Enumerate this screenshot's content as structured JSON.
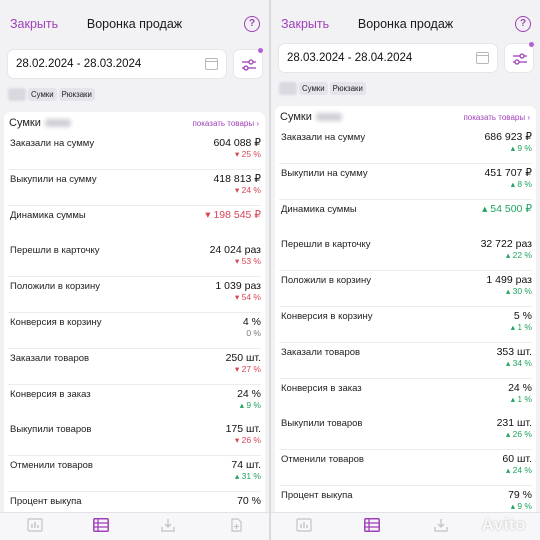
{
  "colors": {
    "accent": "#a040b8",
    "negative": "#d84555",
    "positive": "#21a35f"
  },
  "panels": [
    {
      "close_label": "Закрыть",
      "title": "Воронка продаж",
      "help_icon": "?",
      "date_range": "28.02.2024 - 28.03.2024",
      "chips": [
        "Сумки",
        "Рюкзаки"
      ],
      "card_title": "Сумки",
      "show_goods": "показать товары",
      "metrics": [
        {
          "label": "Заказали на сумму",
          "value": "604 088 ₽",
          "delta": "▾ 25 %",
          "trend": "neg"
        },
        {
          "label": "Выкупили на сумму",
          "value": "418 813 ₽",
          "delta": "▾ 24 %",
          "trend": "neg"
        },
        {
          "label": "Динамика суммы",
          "value": "▾ 198 545 ₽",
          "delta": "",
          "trend": "neg",
          "value_colored": true
        },
        {
          "label": "Перешли в карточку",
          "value": "24 024 раз",
          "delta": "▾ 53 %",
          "trend": "neg"
        },
        {
          "label": "Положили в корзину",
          "value": "1 039 раз",
          "delta": "▾ 54 %",
          "trend": "neg"
        },
        {
          "label": "Конверсия в корзину",
          "value": "4 %",
          "delta": "0 %",
          "trend": "neutral"
        },
        {
          "label": "Заказали товаров",
          "value": "250 шт.",
          "delta": "▾ 27 %",
          "trend": "neg"
        },
        {
          "label": "Конверсия в заказ",
          "value": "24 %",
          "delta": "▴ 9 %",
          "trend": "pos"
        },
        {
          "label": "Выкупили товаров",
          "value": "175 шт.",
          "delta": "▾ 26 %",
          "trend": "neg"
        },
        {
          "label": "Отменили товаров",
          "value": "74 шт.",
          "delta": "▴ 31 %",
          "trend": "pos"
        },
        {
          "label": "Процент выкупа",
          "value": "70 %",
          "delta": "",
          "trend": "neutral"
        }
      ]
    },
    {
      "close_label": "Закрыть",
      "title": "Воронка продаж",
      "help_icon": "?",
      "date_range": "28.03.2024 - 28.04.2024",
      "chips": [
        "Сумки",
        "Рюкзаки"
      ],
      "card_title": "Сумки",
      "show_goods": "показать товары",
      "metrics": [
        {
          "label": "Заказали на сумму",
          "value": "686 923 ₽",
          "delta": "▴ 9 %",
          "trend": "pos"
        },
        {
          "label": "Выкупили на сумму",
          "value": "451 707 ₽",
          "delta": "▴ 8 %",
          "trend": "pos"
        },
        {
          "label": "Динамика суммы",
          "value": "▴ 54 500 ₽",
          "delta": "",
          "trend": "pos",
          "value_colored": true
        },
        {
          "label": "Перешли в карточку",
          "value": "32 722 раз",
          "delta": "▴ 22 %",
          "trend": "pos"
        },
        {
          "label": "Положили в корзину",
          "value": "1 499 раз",
          "delta": "▴ 30 %",
          "trend": "pos"
        },
        {
          "label": "Конверсия в корзину",
          "value": "5 %",
          "delta": "▴ 1 %",
          "trend": "pos"
        },
        {
          "label": "Заказали товаров",
          "value": "353 шт.",
          "delta": "▴ 34 %",
          "trend": "pos"
        },
        {
          "label": "Конверсия в заказ",
          "value": "24 %",
          "delta": "▴ 1 %",
          "trend": "pos"
        },
        {
          "label": "Выкупили товаров",
          "value": "231 шт.",
          "delta": "▴ 26 %",
          "trend": "pos"
        },
        {
          "label": "Отменили товаров",
          "value": "60 шт.",
          "delta": "▴ 24 %",
          "trend": "pos"
        },
        {
          "label": "Процент выкупа",
          "value": "79 %",
          "delta": "▴ 9 %",
          "trend": "pos"
        }
      ]
    }
  ],
  "tabbar_icons": [
    "chart-icon",
    "table-icon",
    "download-icon",
    "document-icon"
  ],
  "watermark": "Avito"
}
